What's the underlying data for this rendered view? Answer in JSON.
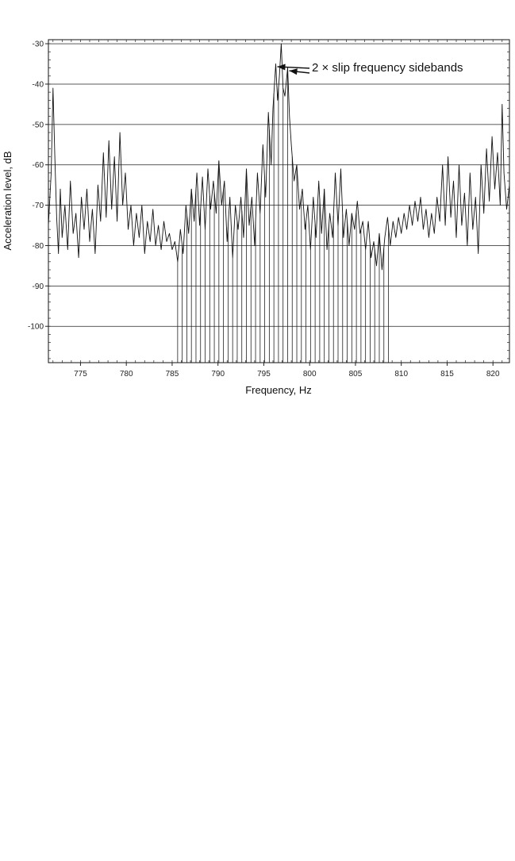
{
  "chart_data": {
    "type": "line",
    "title": "",
    "xlabel": "Frequency, Hz",
    "ylabel": "Acceleration level, dB",
    "xlim": [
      771.5,
      821.8
    ],
    "ylim": [
      -109,
      -29
    ],
    "x_ticks": [
      775,
      780,
      785,
      790,
      795,
      800,
      805,
      810,
      815,
      820
    ],
    "x_tick_labels": [
      "775",
      "780",
      "785",
      "790",
      "795",
      "800",
      "805",
      "810",
      "815",
      "820"
    ],
    "y_ticks": [
      -30,
      -40,
      -50,
      -60,
      -70,
      -80,
      -90,
      -100
    ],
    "y_tick_labels": [
      "-30",
      "-40",
      "-50",
      "-60",
      "-70",
      "-80",
      "-90",
      "-100"
    ],
    "grid": "horizontal",
    "annotation": {
      "text": "2 × slip frequency sidebands",
      "targets": [
        [
          796.3,
          -35.5
        ],
        [
          797.6,
          -36.5
        ]
      ]
    },
    "series": [
      {
        "points": [
          [
            771.5,
            -75
          ],
          [
            771.8,
            -62
          ],
          [
            772.0,
            -41
          ],
          [
            772.2,
            -58
          ],
          [
            772.4,
            -73
          ],
          [
            772.6,
            -82
          ],
          [
            772.8,
            -66
          ],
          [
            773.0,
            -78
          ],
          [
            773.3,
            -70
          ],
          [
            773.6,
            -81
          ],
          [
            773.9,
            -64
          ],
          [
            774.2,
            -77
          ],
          [
            774.5,
            -72
          ],
          [
            774.8,
            -83
          ],
          [
            775.1,
            -68
          ],
          [
            775.4,
            -76
          ],
          [
            775.7,
            -66
          ],
          [
            776.0,
            -79
          ],
          [
            776.3,
            -71
          ],
          [
            776.6,
            -82
          ],
          [
            776.9,
            -65
          ],
          [
            777.2,
            -74
          ],
          [
            777.5,
            -57
          ],
          [
            777.8,
            -73
          ],
          [
            778.1,
            -54
          ],
          [
            778.4,
            -71
          ],
          [
            778.7,
            -58
          ],
          [
            779.0,
            -74
          ],
          [
            779.3,
            -52
          ],
          [
            779.6,
            -70
          ],
          [
            779.9,
            -62
          ],
          [
            780.2,
            -76
          ],
          [
            780.5,
            -70
          ],
          [
            780.8,
            -80
          ],
          [
            781.1,
            -72
          ],
          [
            781.4,
            -78
          ],
          [
            781.7,
            -70
          ],
          [
            782.0,
            -82
          ],
          [
            782.3,
            -74
          ],
          [
            782.6,
            -79
          ],
          [
            782.9,
            -71
          ],
          [
            783.2,
            -80
          ],
          [
            783.5,
            -75
          ],
          [
            783.8,
            -81
          ],
          [
            784.1,
            -74
          ],
          [
            784.4,
            -79
          ],
          [
            784.7,
            -77
          ],
          [
            785.0,
            -81
          ],
          [
            785.3,
            -79
          ],
          [
            785.6,
            -84
          ],
          [
            785.9,
            -76
          ],
          [
            786.2,
            -82
          ],
          [
            786.5,
            -70
          ],
          [
            786.8,
            -77
          ],
          [
            787.1,
            -66
          ],
          [
            787.4,
            -74
          ],
          [
            787.7,
            -62
          ],
          [
            788.0,
            -75
          ],
          [
            788.3,
            -63
          ],
          [
            788.6,
            -76
          ],
          [
            788.9,
            -61
          ],
          [
            789.2,
            -71
          ],
          [
            789.5,
            -64
          ],
          [
            789.8,
            -72
          ],
          [
            790.1,
            -59
          ],
          [
            790.4,
            -70
          ],
          [
            790.7,
            -64
          ],
          [
            791.0,
            -79
          ],
          [
            791.3,
            -68
          ],
          [
            791.6,
            -83
          ],
          [
            791.9,
            -70
          ],
          [
            792.2,
            -76
          ],
          [
            792.5,
            -68
          ],
          [
            792.8,
            -78
          ],
          [
            793.1,
            -61
          ],
          [
            793.4,
            -75
          ],
          [
            793.7,
            -68
          ],
          [
            794.0,
            -80
          ],
          [
            794.3,
            -62
          ],
          [
            794.6,
            -72
          ],
          [
            794.9,
            -55
          ],
          [
            795.2,
            -68
          ],
          [
            795.5,
            -47
          ],
          [
            795.8,
            -60
          ],
          [
            796.0,
            -46
          ],
          [
            796.3,
            -35
          ],
          [
            796.5,
            -44
          ],
          [
            796.7,
            -38
          ],
          [
            796.9,
            -30
          ],
          [
            797.1,
            -41
          ],
          [
            797.3,
            -43
          ],
          [
            797.6,
            -36
          ],
          [
            797.8,
            -48
          ],
          [
            798.0,
            -55
          ],
          [
            798.3,
            -64
          ],
          [
            798.6,
            -60
          ],
          [
            798.9,
            -71
          ],
          [
            799.2,
            -66
          ],
          [
            799.5,
            -76
          ],
          [
            799.8,
            -70
          ],
          [
            800.1,
            -81
          ],
          [
            800.4,
            -68
          ],
          [
            800.7,
            -78
          ],
          [
            801.0,
            -64
          ],
          [
            801.3,
            -77
          ],
          [
            801.6,
            -66
          ],
          [
            801.9,
            -81
          ],
          [
            802.2,
            -72
          ],
          [
            802.5,
            -78
          ],
          [
            802.8,
            -62
          ],
          [
            803.1,
            -75
          ],
          [
            803.4,
            -61
          ],
          [
            803.7,
            -78
          ],
          [
            804.0,
            -71
          ],
          [
            804.3,
            -80
          ],
          [
            804.6,
            -72
          ],
          [
            804.9,
            -76
          ],
          [
            805.2,
            -69
          ],
          [
            805.5,
            -77
          ],
          [
            805.8,
            -74
          ],
          [
            806.1,
            -81
          ],
          [
            806.4,
            -74
          ],
          [
            806.7,
            -83
          ],
          [
            807.0,
            -79
          ],
          [
            807.3,
            -85
          ],
          [
            807.6,
            -77
          ],
          [
            807.9,
            -86
          ],
          [
            808.2,
            -78
          ],
          [
            808.5,
            -73
          ],
          [
            808.8,
            -80
          ],
          [
            809.1,
            -74
          ],
          [
            809.4,
            -78
          ],
          [
            809.7,
            -73
          ],
          [
            810.0,
            -77
          ],
          [
            810.3,
            -72
          ],
          [
            810.6,
            -76
          ],
          [
            810.9,
            -70
          ],
          [
            811.2,
            -75
          ],
          [
            811.5,
            -69
          ],
          [
            811.8,
            -74
          ],
          [
            812.1,
            -68
          ],
          [
            812.4,
            -76
          ],
          [
            812.7,
            -71
          ],
          [
            813.0,
            -78
          ],
          [
            813.3,
            -72
          ],
          [
            813.6,
            -77
          ],
          [
            813.9,
            -68
          ],
          [
            814.2,
            -74
          ],
          [
            814.5,
            -60
          ],
          [
            814.8,
            -75
          ],
          [
            815.1,
            -58
          ],
          [
            815.4,
            -73
          ],
          [
            815.7,
            -64
          ],
          [
            816.0,
            -78
          ],
          [
            816.3,
            -60
          ],
          [
            816.6,
            -75
          ],
          [
            816.9,
            -67
          ],
          [
            817.2,
            -80
          ],
          [
            817.5,
            -62
          ],
          [
            817.8,
            -76
          ],
          [
            818.1,
            -68
          ],
          [
            818.4,
            -82
          ],
          [
            818.7,
            -60
          ],
          [
            819.0,
            -72
          ],
          [
            819.3,
            -56
          ],
          [
            819.6,
            -69
          ],
          [
            819.9,
            -53
          ],
          [
            820.2,
            -66
          ],
          [
            820.5,
            -57
          ],
          [
            820.8,
            -70
          ],
          [
            821.0,
            -45
          ],
          [
            821.2,
            -62
          ],
          [
            821.5,
            -71
          ],
          [
            821.8,
            -65
          ]
        ]
      }
    ],
    "harmonic_lines": [
      785.6,
      786.1,
      786.6,
      787.1,
      787.6,
      788.1,
      788.6,
      789.1,
      789.6,
      790.1,
      790.6,
      791.1,
      791.6,
      792.1,
      792.6,
      793.1,
      793.6,
      794.1,
      794.6,
      795.1,
      795.6,
      796.1,
      796.6,
      797.1,
      797.6,
      798.1,
      798.6,
      799.1,
      799.6,
      800.1,
      800.6,
      801.1,
      801.6,
      802.1,
      802.6,
      803.1,
      803.6,
      804.1,
      804.6,
      805.1,
      805.6,
      806.1,
      806.6,
      807.1,
      807.6,
      808.1,
      808.6
    ]
  }
}
